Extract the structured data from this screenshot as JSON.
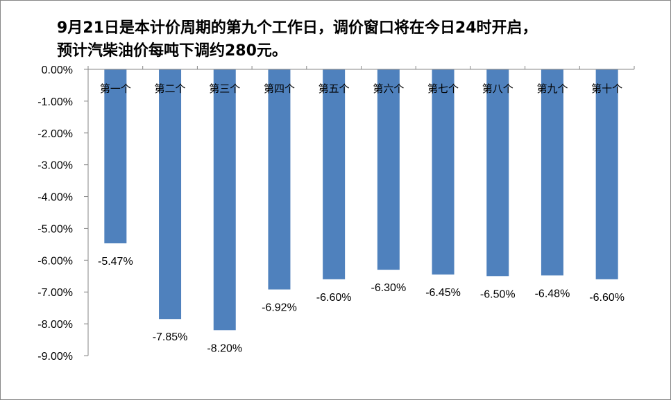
{
  "chart_data": {
    "type": "bar",
    "title_lines": [
      "9月21日是本计价周期的第九个工作日，调价窗口将在今日24时开启，",
      "预计汽柴油价每吨下调约280元。"
    ],
    "xlabel": "",
    "ylabel": "",
    "categories": [
      "第一个",
      "第二个",
      "第三个",
      "第四个",
      "第五个",
      "第六个",
      "第七个",
      "第八个",
      "第九个",
      "第十个"
    ],
    "series": [
      {
        "values": [
          -5.47,
          -7.85,
          -8.2,
          -6.92,
          -6.6,
          -6.3,
          -6.45,
          -6.5,
          -6.48,
          -6.6
        ],
        "data_labels": [
          "-5.47%",
          "-7.85%",
          "-8.20%",
          "-6.92%",
          "-6.60%",
          "-6.30%",
          "-6.45%",
          "-6.50%",
          "-6.48%",
          "-6.60%"
        ],
        "color": "#4F81BD"
      }
    ],
    "ylim": [
      -9.0,
      0.0
    ],
    "y_ticks": [
      0,
      -1,
      -2,
      -3,
      -4,
      -5,
      -6,
      -7,
      -8,
      -9
    ],
    "y_tick_labels": [
      "0.00%",
      "-1.00%",
      "-2.00%",
      "-3.00%",
      "-4.00%",
      "-5.00%",
      "-6.00%",
      "-7.00%",
      "-8.00%",
      "-9.00%"
    ],
    "grid": false,
    "legend": "none",
    "category_labels_position": "below-top-axis"
  }
}
